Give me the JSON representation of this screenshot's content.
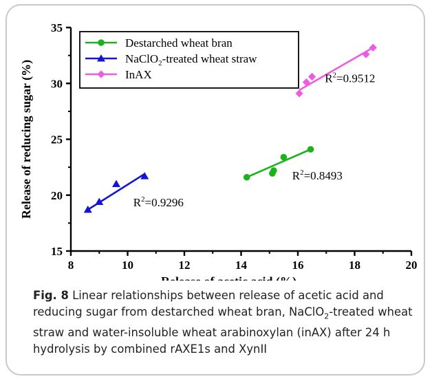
{
  "chart_data": {
    "type": "scatter",
    "xlabel": "Release of acetic acid (%)",
    "ylabel": "Release of reducing sugar (%)",
    "xlim": [
      8,
      20
    ],
    "ylim": [
      15,
      35
    ],
    "xticks": [
      "8",
      "10",
      "12",
      "14",
      "16",
      "18",
      "20"
    ],
    "yticks": [
      "15",
      "20",
      "25",
      "30",
      "35"
    ],
    "grid": false,
    "legend_position": "top-left",
    "series": [
      {
        "name_pre": "Destarched wheat bran",
        "name_sub": "",
        "name_post": "",
        "color": "#19b419",
        "marker": "circle",
        "points": [
          [
            14.2,
            21.6
          ],
          [
            15.1,
            21.95
          ],
          [
            15.15,
            22.2
          ],
          [
            15.5,
            23.4
          ],
          [
            16.45,
            24.1
          ]
        ],
        "fit": [
          [
            14.2,
            21.6
          ],
          [
            16.45,
            24.1
          ]
        ],
        "r2_pre": "R",
        "r2_sup": "2",
        "r2_post": "=0.8493",
        "r2_at": [
          15.8,
          21.4
        ]
      },
      {
        "name_pre": "NaClO",
        "name_sub": "2",
        "name_post": "-treated wheat straw",
        "color": "#1414d2",
        "marker": "triangle",
        "points": [
          [
            8.6,
            18.7
          ],
          [
            9.0,
            19.4
          ],
          [
            9.6,
            21.0
          ],
          [
            10.6,
            21.7
          ]
        ],
        "fit": [
          [
            8.6,
            18.7
          ],
          [
            10.6,
            21.9
          ]
        ],
        "r2_pre": "R",
        "r2_sup": "2",
        "r2_post": "=0.9296",
        "r2_at": [
          10.2,
          19.0
        ]
      },
      {
        "name_pre": "InAX",
        "name_sub": "",
        "name_post": "",
        "color": "#ee5be0",
        "marker": "diamond",
        "points": [
          [
            16.05,
            29.1
          ],
          [
            16.3,
            30.1
          ],
          [
            16.5,
            30.6
          ],
          [
            18.4,
            32.6
          ],
          [
            18.65,
            33.2
          ]
        ],
        "fit": [
          [
            16.05,
            29.4
          ],
          [
            18.65,
            33.2
          ]
        ],
        "r2_pre": "R",
        "r2_sup": "2",
        "r2_post": "=0.9512",
        "r2_at": [
          16.95,
          30.1
        ]
      }
    ]
  },
  "caption": {
    "label": "Fig. 8",
    "text_1": " Linear relationships between release of acetic acid and reducing sugar from destarched wheat bran, NaClO",
    "sub": "2",
    "text_2": "-treated wheat straw and water-insoluble wheat arabinoxylan (inAX) after 24 h hydrolysis by combined rAXE1s and XynII"
  }
}
